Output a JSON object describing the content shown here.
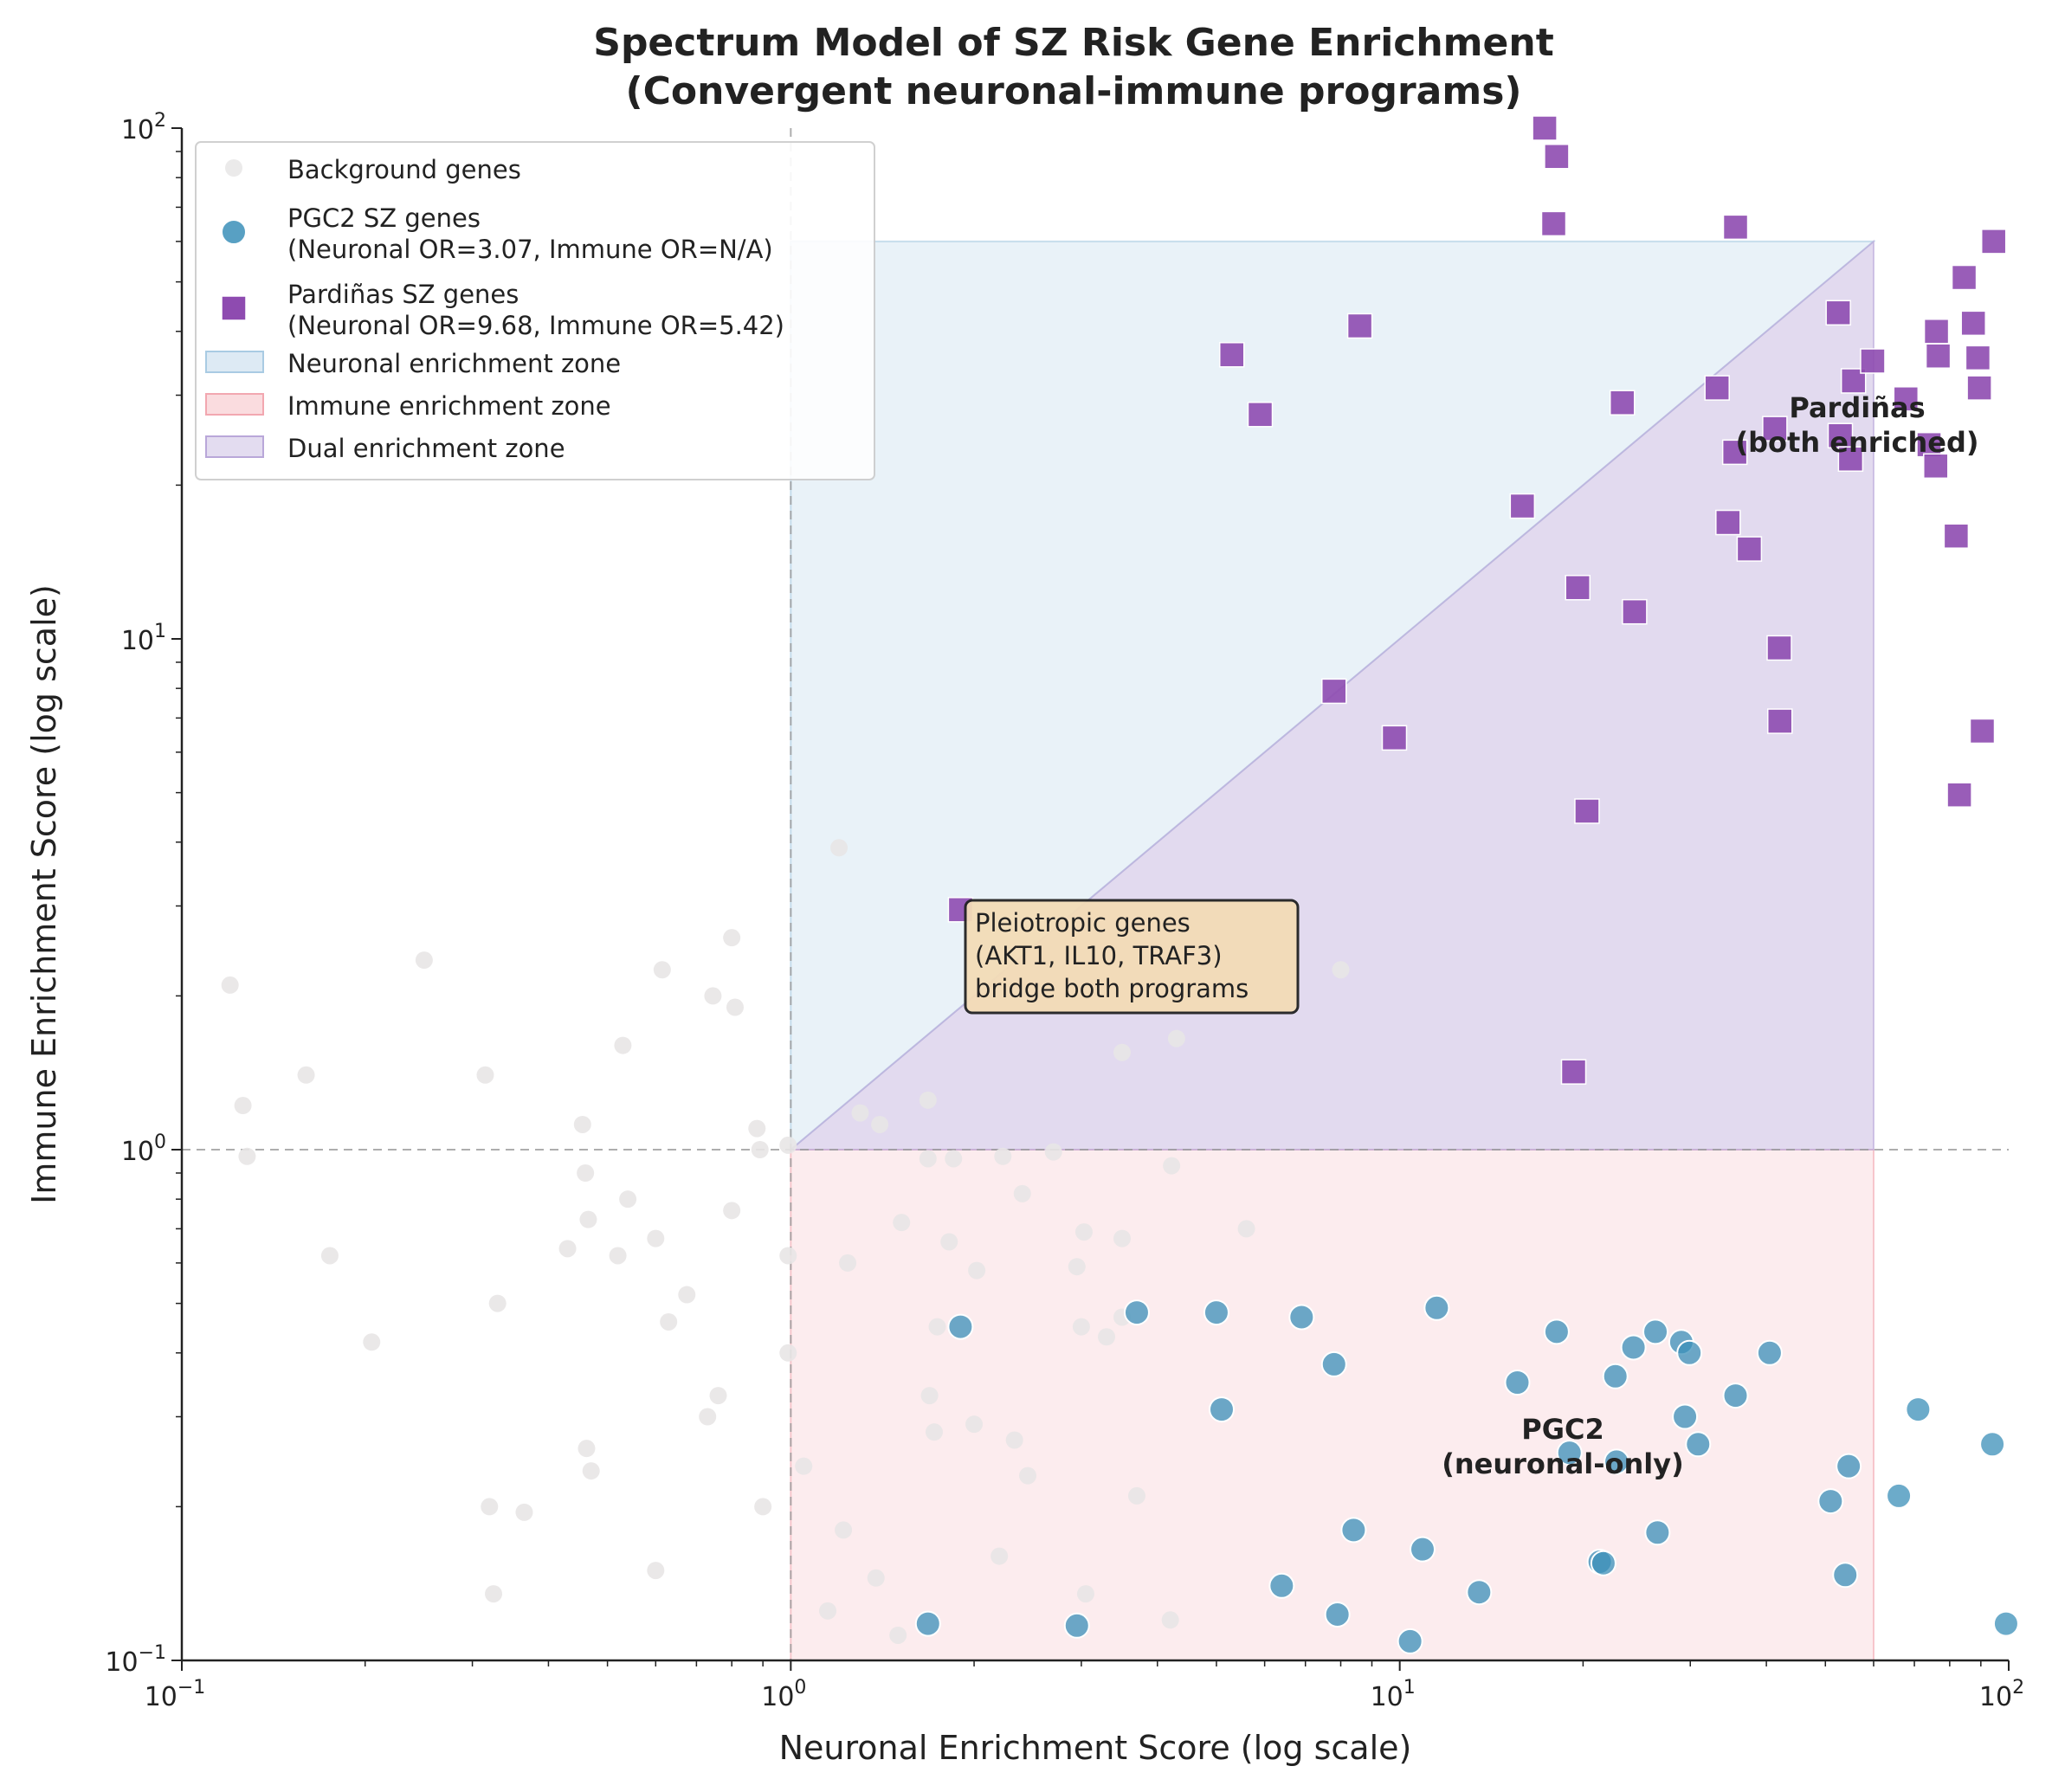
{
  "chart_data": {
    "type": "scatter",
    "title": [
      "Spectrum Model of SZ Risk Gene Enrichment",
      "(Convergent neuronal-immune programs)"
    ],
    "xlabel": "Neuronal Enrichment Score (log scale)",
    "ylabel": "Immune Enrichment Score (log scale)",
    "xscale": "log",
    "yscale": "log",
    "xlim": [
      0.1,
      100
    ],
    "ylim": [
      0.1,
      100
    ],
    "grid": false,
    "legend_position": "top-left",
    "xticks": [
      {
        "value": 0.1,
        "base": "10",
        "exp": "−1"
      },
      {
        "value": 1,
        "base": "10",
        "exp": "0"
      },
      {
        "value": 10,
        "base": "10",
        "exp": "1"
      },
      {
        "value": 100,
        "base": "10",
        "exp": "2"
      }
    ],
    "yticks": [
      {
        "value": 0.1,
        "base": "10",
        "exp": "−1"
      },
      {
        "value": 1,
        "base": "10",
        "exp": "0"
      },
      {
        "value": 10,
        "base": "10",
        "exp": "1"
      },
      {
        "value": 100,
        "base": "10",
        "exp": "2"
      }
    ],
    "reference_lines": {
      "x": 1,
      "y": 1
    },
    "zones": [
      {
        "name": "Neuronal enrichment zone",
        "color": "#a9cbe3",
        "opacity": 0.25,
        "polygon": [
          [
            1,
            1
          ],
          [
            60,
            60
          ],
          [
            1,
            60
          ]
        ]
      },
      {
        "name": "Immune enrichment zone",
        "color": "#f2a7b0",
        "opacity": 0.22,
        "polygon": [
          [
            1,
            0.1
          ],
          [
            60,
            0.1
          ],
          [
            60,
            1
          ],
          [
            1,
            1
          ]
        ]
      },
      {
        "name": "Dual enrichment zone",
        "color": "#b9a7d9",
        "opacity": 0.42,
        "polygon": [
          [
            1,
            1
          ],
          [
            60,
            1
          ],
          [
            60,
            60
          ]
        ]
      }
    ],
    "series": [
      {
        "name": "Background genes",
        "marker": "circle",
        "color": "#e8e6e6",
        "points": [
          [
            0.12,
            2.1
          ],
          [
            0.126,
            1.22
          ],
          [
            0.128,
            0.97
          ],
          [
            0.16,
            1.4
          ],
          [
            0.175,
            0.62
          ],
          [
            0.205,
            0.42
          ],
          [
            0.25,
            2.35
          ],
          [
            0.315,
            1.4
          ],
          [
            0.32,
            0.2
          ],
          [
            0.325,
            0.135
          ],
          [
            0.33,
            0.5
          ],
          [
            0.365,
            0.195
          ],
          [
            0.43,
            0.64
          ],
          [
            0.455,
            1.12
          ],
          [
            0.46,
            0.9
          ],
          [
            0.462,
            0.26
          ],
          [
            0.465,
            0.73
          ],
          [
            0.47,
            0.235
          ],
          [
            0.52,
            0.62
          ],
          [
            0.53,
            1.6
          ],
          [
            0.54,
            0.8
          ],
          [
            0.6,
            0.67
          ],
          [
            0.6,
            0.15
          ],
          [
            0.615,
            2.25
          ],
          [
            0.63,
            0.46
          ],
          [
            0.675,
            0.52
          ],
          [
            0.73,
            0.3
          ],
          [
            0.745,
            2.0
          ],
          [
            0.76,
            0.33
          ],
          [
            0.8,
            2.6
          ],
          [
            0.8,
            0.76
          ],
          [
            0.81,
            1.9
          ],
          [
            0.88,
            1.1
          ],
          [
            0.89,
            1.0
          ],
          [
            0.9,
            0.2
          ],
          [
            0.99,
            1.02
          ],
          [
            0.99,
            0.62
          ],
          [
            0.99,
            0.4
          ],
          [
            1.05,
            0.24
          ],
          [
            1.15,
            0.125
          ],
          [
            1.2,
            3.9
          ],
          [
            1.22,
            0.18
          ],
          [
            1.24,
            0.6
          ],
          [
            1.3,
            1.18
          ],
          [
            1.38,
            0.145
          ],
          [
            1.4,
            1.12
          ],
          [
            1.5,
            0.112
          ],
          [
            1.52,
            0.72
          ],
          [
            1.68,
            1.25
          ],
          [
            1.68,
            0.96
          ],
          [
            1.69,
            0.33
          ],
          [
            1.72,
            0.28
          ],
          [
            1.74,
            0.45
          ],
          [
            1.82,
            0.66
          ],
          [
            1.85,
            0.96
          ],
          [
            2.0,
            0.29
          ],
          [
            2.02,
            0.58
          ],
          [
            2.2,
            0.16
          ],
          [
            2.23,
            0.97
          ],
          [
            2.33,
            0.27
          ],
          [
            2.4,
            0.82
          ],
          [
            2.45,
            0.23
          ],
          [
            2.7,
            0.99
          ],
          [
            2.95,
            0.59
          ],
          [
            3.0,
            0.45
          ],
          [
            3.03,
            0.69
          ],
          [
            3.05,
            0.135
          ],
          [
            3.3,
            0.43
          ],
          [
            3.5,
            0.47
          ],
          [
            3.5,
            0.67
          ],
          [
            3.5,
            1.55
          ],
          [
            3.7,
            0.21
          ],
          [
            4.2,
            0.12
          ],
          [
            4.22,
            0.93
          ],
          [
            4.3,
            1.65
          ],
          [
            5.6,
            0.7
          ],
          [
            8.0,
            2.25
          ]
        ]
      },
      {
        "name": "PGC2 SZ genes\n(Neuronal OR=3.07, Immune OR=N/A)",
        "marker": "circle",
        "color": "#3b8fb8",
        "points": [
          [
            1.68,
            0.118
          ],
          [
            1.9,
            0.45
          ],
          [
            2.95,
            0.117
          ],
          [
            3.7,
            0.48
          ],
          [
            5.0,
            0.48
          ],
          [
            5.1,
            0.31
          ],
          [
            6.4,
            0.14
          ],
          [
            6.9,
            0.47
          ],
          [
            7.8,
            0.38
          ],
          [
            7.9,
            0.123
          ],
          [
            8.4,
            0.18
          ],
          [
            10.4,
            0.109
          ],
          [
            10.9,
            0.165
          ],
          [
            11.5,
            0.49
          ],
          [
            13.5,
            0.136
          ],
          [
            15.6,
            0.35
          ],
          [
            18.1,
            0.44
          ],
          [
            19.0,
            0.255
          ],
          [
            21.3,
            0.156
          ],
          [
            21.6,
            0.155
          ],
          [
            22.6,
            0.36
          ],
          [
            22.7,
            0.245
          ],
          [
            24.2,
            0.41
          ],
          [
            26.3,
            0.44
          ],
          [
            26.5,
            0.178
          ],
          [
            29.0,
            0.42
          ],
          [
            29.4,
            0.3
          ],
          [
            29.9,
            0.4
          ],
          [
            30.9,
            0.265
          ],
          [
            35.6,
            0.33
          ],
          [
            40.5,
            0.4
          ],
          [
            51.0,
            0.205
          ],
          [
            53.9,
            0.147
          ],
          [
            54.6,
            0.24
          ],
          [
            66.0,
            0.21
          ],
          [
            71.0,
            0.31
          ],
          [
            94.0,
            0.265
          ],
          [
            99.0,
            0.118
          ]
        ]
      },
      {
        "name": "Pardiñas SZ genes\n(Neuronal OR=9.68, Immune OR=5.42)",
        "marker": "square",
        "color": "#8e4bb0",
        "points": [
          [
            1.9,
            2.95
          ],
          [
            5.3,
            36
          ],
          [
            5.9,
            27.5
          ],
          [
            7.8,
            7.9
          ],
          [
            8.6,
            41
          ],
          [
            9.8,
            6.4
          ],
          [
            15.9,
            18.2
          ],
          [
            17.3,
            100
          ],
          [
            17.9,
            65
          ],
          [
            18.1,
            88
          ],
          [
            19.3,
            1.42
          ],
          [
            19.6,
            12.6
          ],
          [
            20.3,
            4.6
          ],
          [
            23.2,
            29
          ],
          [
            24.3,
            11.3
          ],
          [
            33.2,
            31
          ],
          [
            34.6,
            16.9
          ],
          [
            35.5,
            23.2
          ],
          [
            35.6,
            64
          ],
          [
            37.5,
            15
          ],
          [
            41.3,
            25.8
          ],
          [
            42.0,
            9.6
          ],
          [
            42.1,
            6.9
          ],
          [
            52.5,
            43.5
          ],
          [
            52.9,
            25
          ],
          [
            55.0,
            22.5
          ],
          [
            55.6,
            32
          ],
          [
            59.8,
            35
          ],
          [
            67.8,
            29.5
          ],
          [
            74,
            24
          ],
          [
            75.9,
            21.8
          ],
          [
            76.1,
            40
          ],
          [
            76.6,
            35.8
          ],
          [
            82,
            15.9
          ],
          [
            83,
            4.95
          ],
          [
            84.5,
            51
          ],
          [
            87.5,
            41.5
          ],
          [
            89,
            35.5
          ],
          [
            89.5,
            31
          ],
          [
            90.5,
            6.6
          ],
          [
            94.5,
            60
          ]
        ]
      }
    ],
    "annotations": [
      {
        "text": [
          "Pleiotropic genes",
          "(AKT1, IL10, TRAF3)",
          "bridge both programs"
        ],
        "boxed": true,
        "box_color": "#f3dcb7"
      },
      {
        "text": [
          "Pardiñas",
          "(both enriched)"
        ],
        "color": "#6a2a9a"
      },
      {
        "text": [
          "PGC2",
          "(neuronal-only)"
        ],
        "color": "#2a7fb0"
      }
    ],
    "legend": [
      {
        "label_lines": [
          "Background genes"
        ],
        "kind": "circle",
        "color": "#e8e6e6"
      },
      {
        "label_lines": [
          "PGC2 SZ genes",
          "(Neuronal OR=3.07, Immune OR=N/A)"
        ],
        "kind": "circle",
        "color": "#3b8fb8"
      },
      {
        "label_lines": [
          "Pardiñas SZ genes",
          "(Neuronal OR=9.68, Immune OR=5.42)"
        ],
        "kind": "square",
        "color": "#8e4bb0"
      },
      {
        "label_lines": [
          "Neuronal enrichment zone"
        ],
        "kind": "patch",
        "color": "#a9cbe3"
      },
      {
        "label_lines": [
          "Immune enrichment zone"
        ],
        "kind": "patch",
        "color": "#f2a7b0"
      },
      {
        "label_lines": [
          "Dual enrichment zone"
        ],
        "kind": "patch",
        "color": "#b9a7d9"
      }
    ]
  }
}
